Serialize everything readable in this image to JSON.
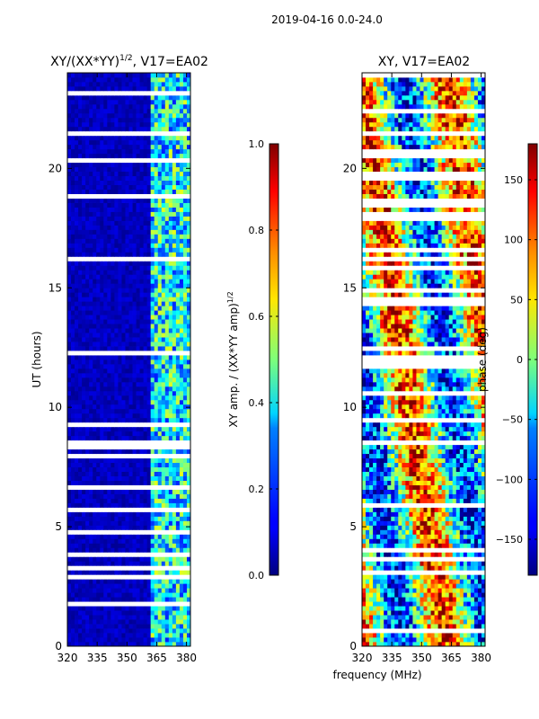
{
  "figure": {
    "suptitle": "2019-04-16 0.0-24.0",
    "xlabel": "frequency (MHz)"
  },
  "chart_data": [
    {
      "type": "heatmap",
      "title_base": "XY/(XX*YY)",
      "title_exp": "1/2",
      "title_suffix": ", V17=EA02",
      "ylabel": "UT (hours)",
      "xlim": [
        320,
        382
      ],
      "ylim": [
        0,
        24
      ],
      "xticks": [
        320,
        335,
        350,
        365,
        380
      ],
      "yticks": [
        0,
        5,
        10,
        15,
        20
      ],
      "colormap": "jet",
      "colorbar": {
        "label_base": "XY amp. / (XX*YY amp)",
        "label_exp": "1/2",
        "range": [
          0.0,
          1.0
        ],
        "ticks": [
          0.0,
          0.2,
          0.4,
          0.6,
          0.8,
          1.0
        ],
        "tick_labels": [
          "0.0",
          "0.2",
          "0.4",
          "0.6",
          "0.8",
          "1.0"
        ]
      },
      "description": "values near 0 below ~362 MHz; mixed 0.2-0.6 above 362 MHz"
    },
    {
      "type": "heatmap",
      "title": "XY, V17=EA02",
      "xlim": [
        320,
        382
      ],
      "ylim": [
        0,
        24
      ],
      "xticks": [
        320,
        335,
        350,
        365,
        380
      ],
      "yticks": [
        0,
        5,
        10,
        15,
        20
      ],
      "colormap": "jet",
      "colorbar": {
        "label": "phase (deg)",
        "range": [
          -180,
          180
        ],
        "ticks": [
          -150,
          -100,
          -50,
          0,
          50,
          100,
          150
        ],
        "tick_labels": [
          "−150",
          "−100",
          "−50",
          "0",
          "50",
          "100",
          "150"
        ]
      }
    }
  ]
}
